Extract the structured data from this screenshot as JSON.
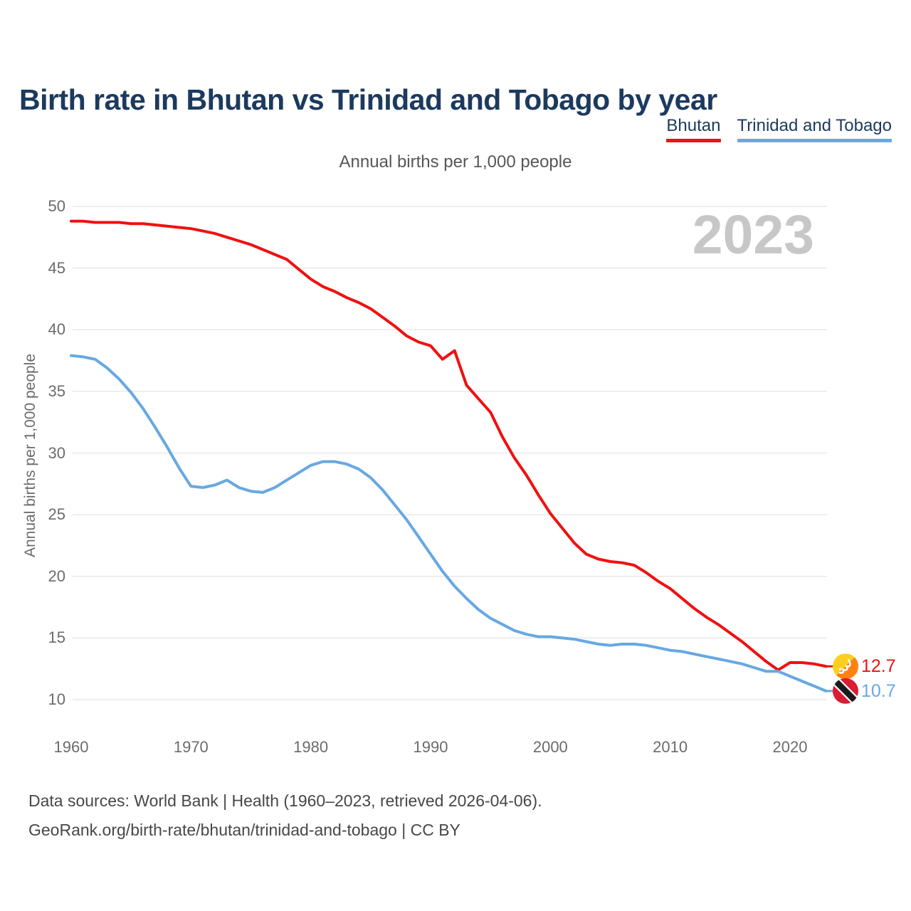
{
  "header": {
    "title": "Birth rate in Bhutan vs Trinidad and Tobago by year"
  },
  "legend": {
    "items": [
      {
        "label": "Bhutan",
        "color": "#ef1111"
      },
      {
        "label": "Trinidad and Tobago",
        "color": "#67a8e1"
      }
    ]
  },
  "subtitle": "Annual births per 1,000 people",
  "watermark": "2023",
  "colors": {
    "bhutan": "#ef1111",
    "trinidad_and_tobago": "#67a8e1",
    "title_navy": "#1c3a5e",
    "gridline": "#e9e9e9",
    "tick_text": "#6b6b6b"
  },
  "end_labels": [
    {
      "series": "Bhutan",
      "value": "12.7",
      "icon": "bhutan-flag-icon",
      "color": "#ef1111"
    },
    {
      "series": "Trinidad and Tobago",
      "value": "10.7",
      "icon": "trinidad-and-tobago-flag-icon",
      "color": "#67a8e1"
    }
  ],
  "footer": {
    "line1": "Data sources: World Bank | Health (1960–2023, retrieved 2026-04-06).",
    "line2": "GeoRank.org/birth-rate/bhutan/trinidad-and-tobago | CC BY"
  },
  "chart_data": {
    "type": "line",
    "title": "Birth rate in Bhutan vs Trinidad and Tobago by year",
    "subtitle": "Annual births per 1,000 people",
    "xlabel": "",
    "ylabel": "Annual births per 1,000 people",
    "xlim": [
      1960,
      2023
    ],
    "ylim": [
      10,
      50
    ],
    "grid": true,
    "legend_position": "top-right",
    "yticks": [
      10,
      15,
      20,
      25,
      30,
      35,
      40,
      45,
      50
    ],
    "xticks": [
      1960,
      1970,
      1980,
      1990,
      2000,
      2010,
      2020
    ],
    "x": [
      1960,
      1961,
      1962,
      1963,
      1964,
      1965,
      1966,
      1967,
      1968,
      1969,
      1970,
      1971,
      1972,
      1973,
      1974,
      1975,
      1976,
      1977,
      1978,
      1979,
      1980,
      1981,
      1982,
      1983,
      1984,
      1985,
      1986,
      1987,
      1988,
      1989,
      1990,
      1991,
      1992,
      1993,
      1994,
      1995,
      1996,
      1997,
      1998,
      1999,
      2000,
      2001,
      2002,
      2003,
      2004,
      2005,
      2006,
      2007,
      2008,
      2009,
      2010,
      2011,
      2012,
      2013,
      2014,
      2015,
      2016,
      2017,
      2018,
      2019,
      2020,
      2021,
      2022,
      2023
    ],
    "series": [
      {
        "name": "Bhutan",
        "color": "#ef1111",
        "final_value": 12.7,
        "values": [
          48.8,
          48.8,
          48.7,
          48.7,
          48.7,
          48.6,
          48.6,
          48.5,
          48.4,
          48.3,
          48.2,
          48.0,
          47.8,
          47.5,
          47.2,
          46.9,
          46.5,
          46.1,
          45.7,
          44.9,
          44.1,
          43.5,
          43.1,
          42.6,
          42.2,
          41.7,
          41.0,
          40.3,
          39.5,
          39.0,
          38.7,
          37.6,
          38.3,
          35.5,
          34.4,
          33.3,
          31.3,
          29.6,
          28.2,
          26.6,
          25.1,
          23.9,
          22.7,
          21.8,
          21.4,
          21.2,
          21.1,
          20.9,
          20.3,
          19.6,
          19.0,
          18.2,
          17.4,
          16.7,
          16.1,
          15.4,
          14.7,
          13.9,
          13.1,
          12.4,
          13.0,
          13.0,
          12.9,
          12.7
        ]
      },
      {
        "name": "Trinidad and Tobago",
        "color": "#67a8e1",
        "final_value": 10.7,
        "values": [
          37.9,
          37.8,
          37.6,
          36.9,
          36.0,
          34.9,
          33.6,
          32.1,
          30.5,
          28.8,
          27.3,
          27.2,
          27.4,
          27.8,
          27.2,
          26.9,
          26.8,
          27.2,
          27.8,
          28.4,
          29.0,
          29.3,
          29.3,
          29.1,
          28.7,
          28.0,
          27.0,
          25.8,
          24.6,
          23.2,
          21.8,
          20.4,
          19.2,
          18.2,
          17.3,
          16.6,
          16.1,
          15.6,
          15.3,
          15.1,
          15.1,
          15.0,
          14.9,
          14.7,
          14.5,
          14.4,
          14.5,
          14.5,
          14.4,
          14.2,
          14.0,
          13.9,
          13.7,
          13.5,
          13.3,
          13.1,
          12.9,
          12.6,
          12.3,
          12.3,
          11.9,
          11.5,
          11.1,
          10.7
        ]
      }
    ]
  }
}
